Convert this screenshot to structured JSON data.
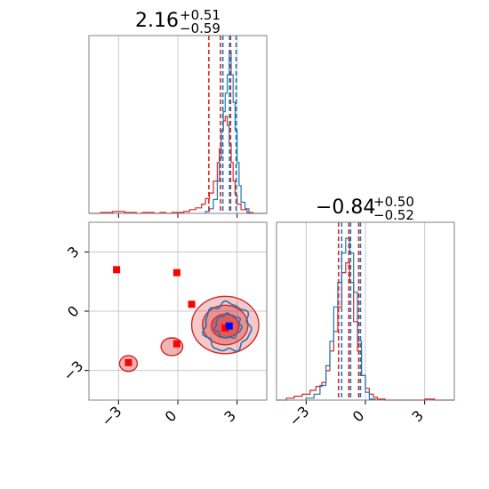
{
  "colors": {
    "red": "#d62728",
    "blue": "#1f77b4",
    "grid": "#c8c8c8",
    "axis": "#808080",
    "marker_red": "#ff0000",
    "marker_blue": "#0000ff"
  },
  "chart_data": [
    {
      "type": "histogram",
      "panel": "top-left",
      "title": {
        "value": "2.16",
        "upper": "+0.51",
        "lower": "−0.59"
      },
      "xlim": [
        -4.5,
        4.5
      ],
      "xticks": [
        -3,
        0,
        3
      ],
      "grid": true,
      "series": [
        {
          "color": "red",
          "bin_edges": [
            -4.5,
            -4.2,
            -3.9,
            -3.6,
            -3.3,
            -3.0,
            -2.7,
            -2.4,
            -2.1,
            -1.8,
            -1.5,
            -1.2,
            -0.9,
            -0.6,
            -0.3,
            0.0,
            0.3,
            0.6,
            0.9,
            1.2,
            1.4,
            1.6,
            1.8,
            2.0,
            2.1,
            2.2,
            2.3,
            2.4,
            2.5,
            2.6,
            2.7,
            2.8,
            2.9,
            3.0,
            3.2,
            3.5,
            3.8,
            4.5
          ],
          "counts": [
            0,
            0,
            1,
            1,
            2,
            2,
            1,
            1,
            0,
            1,
            1,
            0,
            1,
            0,
            1,
            1,
            2,
            4,
            6,
            10,
            16,
            22,
            35,
            55,
            70,
            90,
            100,
            105,
            95,
            75,
            55,
            35,
            20,
            10,
            4,
            1,
            0
          ]
        },
        {
          "color": "blue",
          "bin_edges": [
            1.4,
            1.6,
            1.8,
            2.0,
            2.1,
            2.2,
            2.3,
            2.4,
            2.5,
            2.6,
            2.7,
            2.8,
            2.9,
            3.0,
            3.1,
            3.2,
            3.4,
            3.6,
            3.8
          ],
          "counts": [
            2,
            5,
            15,
            35,
            60,
            90,
            110,
            130,
            150,
            175,
            150,
            120,
            90,
            55,
            30,
            12,
            5,
            0
          ]
        }
      ],
      "lines": [
        {
          "color": "red",
          "values": [
            1.57,
            2.16,
            2.67
          ]
        },
        {
          "color": "blue",
          "values": [
            2.28,
            2.62,
            2.95
          ]
        }
      ]
    },
    {
      "type": "contour",
      "panel": "bottom-left",
      "xlim": [
        -4.5,
        4.5
      ],
      "ylim": [
        -4.5,
        4.5
      ],
      "xticks": [
        -3,
        0,
        3
      ],
      "yticks": [
        -3,
        0,
        3
      ],
      "grid": true,
      "red_markers": [
        [
          -3.1,
          2.1
        ],
        [
          -0.05,
          1.95
        ],
        [
          0.7,
          0.35
        ],
        [
          -0.05,
          -1.65
        ],
        [
          -2.5,
          -2.6
        ],
        [
          2.4,
          -0.85
        ]
      ],
      "blue_markers": [
        [
          2.6,
          -0.75
        ]
      ],
      "red_contours": [
        {
          "cx": 2.4,
          "cy": -0.7,
          "rx": 1.7,
          "ry": 1.45
        },
        {
          "cx": 2.4,
          "cy": -0.7,
          "rx": 1.15,
          "ry": 1.0
        },
        {
          "cx": 2.4,
          "cy": -0.75,
          "rx": 0.7,
          "ry": 0.6
        }
      ],
      "blue_contours": [
        {
          "cx": 2.5,
          "cy": -0.8,
          "rx": 1.15,
          "ry": 1.2
        },
        {
          "cx": 2.55,
          "cy": -0.75,
          "rx": 0.65,
          "ry": 0.6
        }
      ],
      "small_red_regions": [
        {
          "cx": -0.3,
          "cy": -1.8,
          "rx": 0.55,
          "ry": 0.45
        },
        {
          "cx": -2.5,
          "cy": -2.65,
          "rx": 0.45,
          "ry": 0.4
        }
      ]
    },
    {
      "type": "histogram",
      "panel": "bottom-right",
      "title": {
        "value": "−0.84",
        "upper": "+0.50",
        "lower": "−0.52"
      },
      "xlim": [
        -4.5,
        4.5
      ],
      "xticks": [
        -3,
        0,
        3
      ],
      "grid": true,
      "series": [
        {
          "color": "red",
          "bin_edges": [
            -4.5,
            -4.0,
            -3.6,
            -3.2,
            -2.8,
            -2.5,
            -2.2,
            -2.0,
            -1.8,
            -1.6,
            -1.4,
            -1.2,
            -1.0,
            -0.8,
            -0.6,
            -0.4,
            -0.2,
            0.0,
            0.2,
            0.4,
            0.6,
            1.0,
            1.5,
            2.0,
            2.5,
            3.0,
            3.5,
            4.5
          ],
          "counts": [
            0,
            2,
            4,
            6,
            10,
            14,
            18,
            30,
            50,
            70,
            95,
            130,
            140,
            120,
            80,
            50,
            25,
            12,
            6,
            3,
            1,
            0,
            0,
            0,
            0,
            1,
            0
          ]
        },
        {
          "color": "blue",
          "bin_edges": [
            -3.0,
            -2.6,
            -2.3,
            -2.0,
            -1.8,
            -1.6,
            -1.4,
            -1.2,
            -1.0,
            -0.8,
            -0.6,
            -0.4,
            -0.2,
            0.0,
            0.2,
            0.5
          ],
          "counts": [
            2,
            6,
            15,
            35,
            60,
            95,
            120,
            150,
            165,
            150,
            110,
            60,
            25,
            8,
            1
          ]
        }
      ],
      "lines": [
        {
          "color": "red",
          "values": [
            -1.36,
            -0.84,
            -0.34
          ]
        },
        {
          "color": "blue",
          "values": [
            -1.2,
            -0.75,
            -0.25
          ]
        }
      ]
    }
  ]
}
